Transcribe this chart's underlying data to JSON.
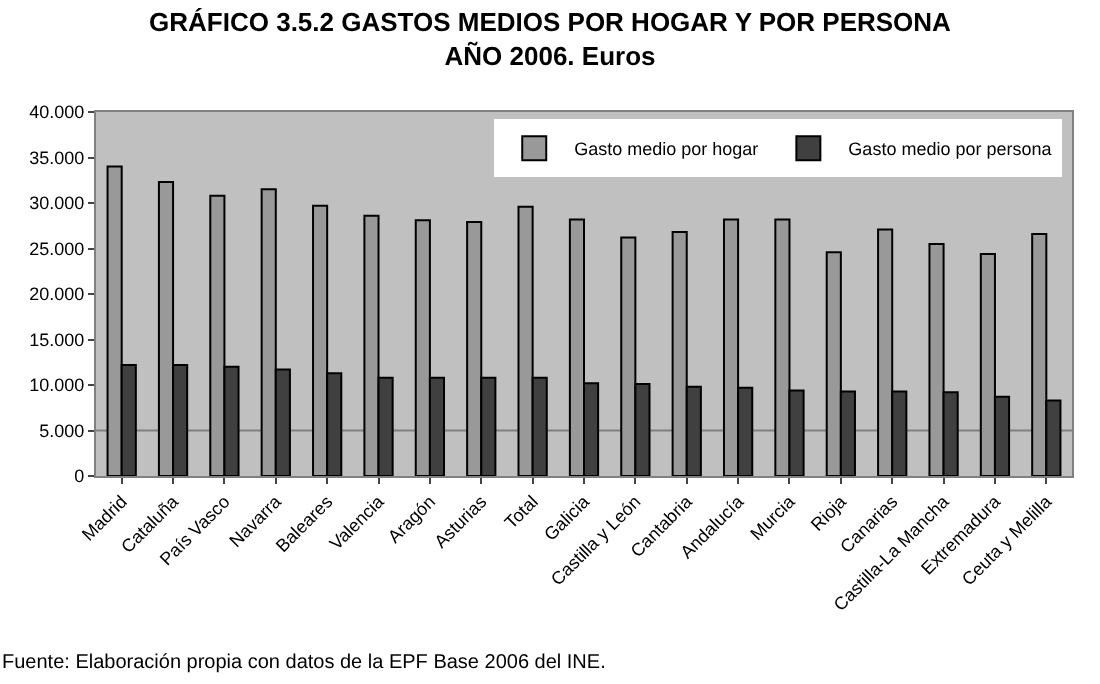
{
  "chart_data": {
    "type": "bar",
    "title": "GRÁFICO 3.5.2 GASTOS MEDIOS POR HOGAR Y POR PERSONA\nAÑO 2006. Euros",
    "categories": [
      "Madrid",
      "Cataluña",
      "País Vasco",
      "Navarra",
      "Baleares",
      "Valencia",
      "Aragón",
      "Asturias",
      "Total",
      "Galicia",
      "Castilla y León",
      "Cantabria",
      "Andalucía",
      "Murcia",
      "Rioja",
      "Canarias",
      "Castilla-La Mancha",
      "Extremadura",
      "Ceuta y Melilla"
    ],
    "series": [
      {
        "name": "Gasto medio por hogar",
        "color": "#999999",
        "values": [
          34000,
          32300,
          30800,
          31500,
          29700,
          28600,
          28100,
          27900,
          29600,
          28200,
          26200,
          26800,
          28200,
          28200,
          24600,
          27100,
          25500,
          24400,
          26600
        ]
      },
      {
        "name": "Gasto medio por persona",
        "color": "#404040",
        "values": [
          12200,
          12200,
          12000,
          11700,
          11300,
          10800,
          10800,
          10800,
          10800,
          10200,
          10100,
          9800,
          9700,
          9400,
          9300,
          9300,
          9200,
          8700,
          8300
        ]
      }
    ],
    "ylim": [
      0,
      40000
    ],
    "yticks": [
      0,
      {
        "value": 5000,
        "label": "5.000"
      },
      {
        "value": 10000,
        "label": "10.000"
      },
      {
        "value": 15000,
        "label": "15.000"
      },
      {
        "value": 20000,
        "label": "20.000"
      },
      {
        "value": 25000,
        "label": "25.000"
      },
      {
        "value": 30000,
        "label": "30.000"
      },
      {
        "value": 35000,
        "label": "35.000"
      },
      {
        "value": 40000,
        "label": "40.000"
      }
    ],
    "ref_lines": [
      {
        "axis": "y",
        "value": 5000
      }
    ],
    "legend": "top right",
    "annotations": [
      "Fuente: Elaboración propia con datos de la EPF Base 2006 del INE."
    ]
  }
}
